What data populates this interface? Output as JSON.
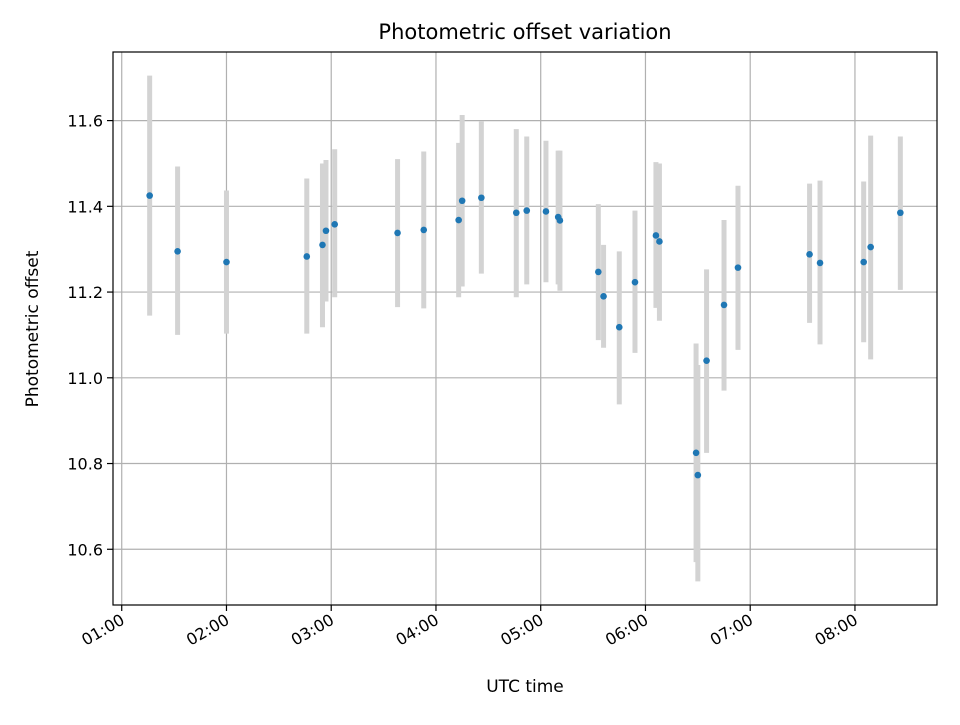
{
  "chart_data": {
    "type": "scatter",
    "title": "Photometric offset variation",
    "xlabel": "UTC time",
    "ylabel": "Photometric offset",
    "xlim": [
      "00:55",
      "08:47"
    ],
    "ylim": [
      10.47,
      11.76
    ],
    "xticks": [
      "01:00",
      "02:00",
      "03:00",
      "04:00",
      "05:00",
      "06:00",
      "07:00",
      "08:00"
    ],
    "yticks": [
      10.6,
      10.8,
      11.0,
      11.2,
      11.4,
      11.6
    ],
    "ytick_labels": [
      "10.6",
      "10.8",
      "11.0",
      "11.2",
      "11.4",
      "11.6"
    ],
    "grid": true,
    "colors": {
      "points": "#1f77b4",
      "error_bars": "#d3d3d3",
      "grid": "#b0b0b0"
    },
    "points": [
      {
        "t": "01:16",
        "y": 11.425,
        "lo": 11.145,
        "hi": 11.705
      },
      {
        "t": "01:32",
        "y": 11.295,
        "lo": 11.1,
        "hi": 11.493
      },
      {
        "t": "02:00",
        "y": 11.27,
        "lo": 11.103,
        "hi": 11.437
      },
      {
        "t": "02:46",
        "y": 11.283,
        "lo": 11.103,
        "hi": 11.465
      },
      {
        "t": "02:55",
        "y": 11.31,
        "lo": 11.118,
        "hi": 11.5
      },
      {
        "t": "02:57",
        "y": 11.343,
        "lo": 11.178,
        "hi": 11.508
      },
      {
        "t": "03:02",
        "y": 11.358,
        "lo": 11.188,
        "hi": 11.533
      },
      {
        "t": "03:38",
        "y": 11.338,
        "lo": 11.165,
        "hi": 11.51
      },
      {
        "t": "03:53",
        "y": 11.345,
        "lo": 11.162,
        "hi": 11.528
      },
      {
        "t": "04:13",
        "y": 11.368,
        "lo": 11.188,
        "hi": 11.548
      },
      {
        "t": "04:15",
        "y": 11.413,
        "lo": 11.213,
        "hi": 11.613
      },
      {
        "t": "04:26",
        "y": 11.42,
        "lo": 11.243,
        "hi": 11.598
      },
      {
        "t": "04:46",
        "y": 11.385,
        "lo": 11.188,
        "hi": 11.58
      },
      {
        "t": "04:52",
        "y": 11.39,
        "lo": 11.218,
        "hi": 11.563
      },
      {
        "t": "05:03",
        "y": 11.388,
        "lo": 11.223,
        "hi": 11.553
      },
      {
        "t": "05:10",
        "y": 11.375,
        "lo": 11.218,
        "hi": 11.53
      },
      {
        "t": "05:11",
        "y": 11.367,
        "lo": 11.203,
        "hi": 11.53
      },
      {
        "t": "05:33",
        "y": 11.247,
        "lo": 11.088,
        "hi": 11.405
      },
      {
        "t": "05:36",
        "y": 11.19,
        "lo": 11.07,
        "hi": 11.31
      },
      {
        "t": "05:45",
        "y": 11.118,
        "lo": 10.938,
        "hi": 11.295
      },
      {
        "t": "05:54",
        "y": 11.223,
        "lo": 11.058,
        "hi": 11.39
      },
      {
        "t": "06:06",
        "y": 11.332,
        "lo": 11.163,
        "hi": 11.503
      },
      {
        "t": "06:08",
        "y": 11.318,
        "lo": 11.133,
        "hi": 11.5
      },
      {
        "t": "06:29",
        "y": 10.825,
        "lo": 10.57,
        "hi": 11.08
      },
      {
        "t": "06:30",
        "y": 10.773,
        "lo": 10.525,
        "hi": 11.03
      },
      {
        "t": "06:35",
        "y": 11.04,
        "lo": 10.825,
        "hi": 11.253
      },
      {
        "t": "06:45",
        "y": 11.17,
        "lo": 10.97,
        "hi": 11.368
      },
      {
        "t": "06:53",
        "y": 11.257,
        "lo": 11.065,
        "hi": 11.448
      },
      {
        "t": "07:34",
        "y": 11.288,
        "lo": 11.128,
        "hi": 11.453
      },
      {
        "t": "07:40",
        "y": 11.268,
        "lo": 11.078,
        "hi": 11.46
      },
      {
        "t": "08:05",
        "y": 11.27,
        "lo": 11.083,
        "hi": 11.458
      },
      {
        "t": "08:09",
        "y": 11.305,
        "lo": 11.043,
        "hi": 11.565
      },
      {
        "t": "08:26",
        "y": 11.385,
        "lo": 11.205,
        "hi": 11.563
      }
    ]
  }
}
